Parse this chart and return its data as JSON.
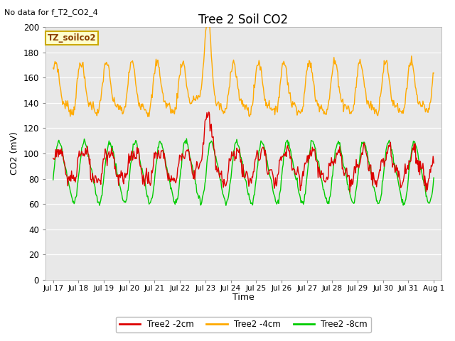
{
  "title": "Tree 2 Soil CO2",
  "no_data_text": "No data for f_T2_CO2_4",
  "ylabel": "CO2 (mV)",
  "xlabel": "Time",
  "ylim": [
    0,
    200
  ],
  "annotation_box": "TZ_soilco2",
  "legend_entries": [
    "Tree2 -2cm",
    "Tree2 -4cm",
    "Tree2 -8cm"
  ],
  "line_colors": [
    "#dd0000",
    "#ffaa00",
    "#00cc00"
  ],
  "bg_color": "#e8e8e8",
  "x_tick_labels": [
    "Jul 17",
    "Jul 18",
    "Jul 19",
    "Jul 20",
    "Jul 21",
    "Jul 22",
    "Jul 23",
    "Jul 24",
    "Jul 25",
    "Jul 26",
    "Jul 27",
    "Jul 28",
    "Jul 29",
    "Jul 30",
    "Jul 31",
    "Aug 1"
  ],
  "orange_base": 148,
  "orange_amp": 18,
  "orange_min": 125,
  "red_base": 90,
  "red_amp": 12,
  "green_base": 85,
  "green_amp": 23
}
